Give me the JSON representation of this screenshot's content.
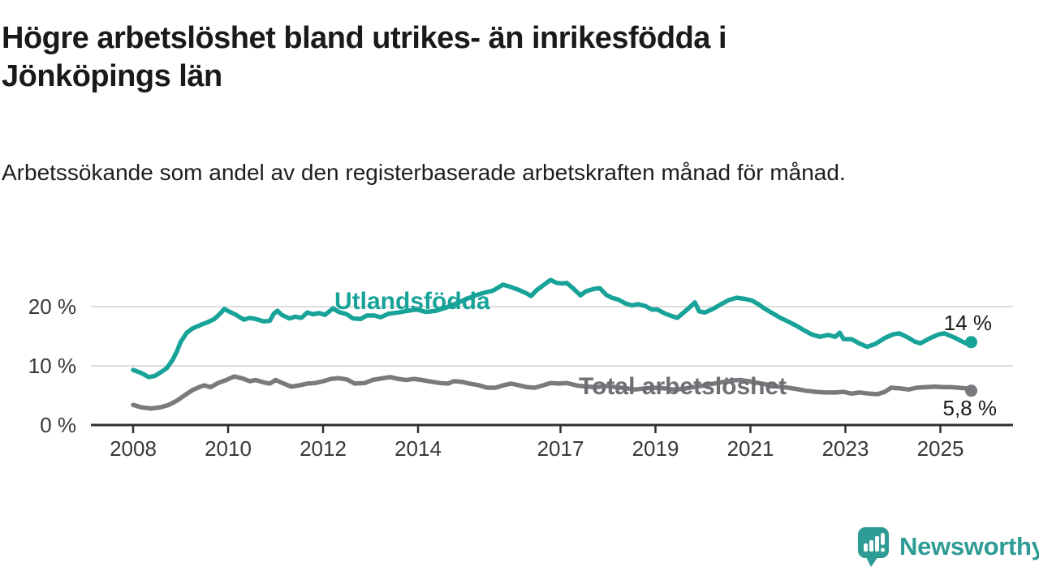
{
  "header": {
    "title": "Högre arbetslöshet bland utrikes- än inrikesfödda i Jönköpings län",
    "subtitle": "Arbetssökande som andel av den registerbaserade arbetskraften månad för månad."
  },
  "footer": {
    "brand": "Newsworthy"
  },
  "colors": {
    "teal": "#18A399",
    "gray": "#7A7A7E",
    "gray_label": "#6E6E73",
    "axis": "#2F2F2F",
    "tick_text": "#383838",
    "gridline": "#DCDCDC",
    "title_text": "#1A1A1A",
    "logo_teal": "#2D9C94"
  },
  "chart_data": {
    "type": "line",
    "title": "Högre arbetslöshet bland utrikes- än inrikesfödda i Jönköpings län",
    "subtitle": "Arbetssökande som andel av den registerbaserade arbetskraften månad för månad.",
    "unit": "%",
    "grid": "horizontal-only",
    "legend_position": "inline-labels-on-lines",
    "x_axis": {
      "ticks": [
        2008,
        2010,
        2012,
        2014,
        2017,
        2019,
        2021,
        2023,
        2025
      ],
      "range": [
        2007.1,
        2026.5
      ]
    },
    "y_axis": {
      "ticks": [
        0,
        10,
        20
      ],
      "tick_labels": [
        "0 %",
        "10 %",
        "20 %"
      ],
      "gridline_values": [
        10,
        20
      ],
      "range": [
        0,
        26.5
      ]
    },
    "series": [
      {
        "name": "Utlandsfödda",
        "color": "#18A399",
        "end_value": 14,
        "end_label": "14 %",
        "points": [
          [
            2008.0,
            9.3
          ],
          [
            2008.17,
            8.8
          ],
          [
            2008.33,
            8.1
          ],
          [
            2008.46,
            8.3
          ],
          [
            2008.58,
            8.9
          ],
          [
            2008.71,
            9.6
          ],
          [
            2008.83,
            11.0
          ],
          [
            2008.92,
            12.4
          ],
          [
            2009.0,
            14.0
          ],
          [
            2009.13,
            15.6
          ],
          [
            2009.25,
            16.3
          ],
          [
            2009.42,
            16.9
          ],
          [
            2009.58,
            17.4
          ],
          [
            2009.71,
            17.9
          ],
          [
            2009.83,
            18.8
          ],
          [
            2009.92,
            19.6
          ],
          [
            2010.04,
            19.1
          ],
          [
            2010.17,
            18.6
          ],
          [
            2010.33,
            17.8
          ],
          [
            2010.46,
            18.1
          ],
          [
            2010.58,
            17.9
          ],
          [
            2010.75,
            17.5
          ],
          [
            2010.88,
            17.6
          ],
          [
            2010.96,
            18.8
          ],
          [
            2011.04,
            19.3
          ],
          [
            2011.13,
            18.6
          ],
          [
            2011.29,
            18.0
          ],
          [
            2011.42,
            18.3
          ],
          [
            2011.54,
            18.1
          ],
          [
            2011.67,
            19.0
          ],
          [
            2011.79,
            18.7
          ],
          [
            2011.92,
            18.9
          ],
          [
            2012.04,
            18.6
          ],
          [
            2012.21,
            19.7
          ],
          [
            2012.33,
            19.1
          ],
          [
            2012.5,
            18.7
          ],
          [
            2012.63,
            18.0
          ],
          [
            2012.79,
            17.9
          ],
          [
            2012.92,
            18.5
          ],
          [
            2013.08,
            18.5
          ],
          [
            2013.21,
            18.2
          ],
          [
            2013.38,
            18.8
          ],
          [
            2013.58,
            19.0
          ],
          [
            2013.79,
            19.3
          ],
          [
            2013.96,
            19.5
          ],
          [
            2014.17,
            19.1
          ],
          [
            2014.38,
            19.3
          ],
          [
            2014.58,
            19.8
          ],
          [
            2014.79,
            20.5
          ],
          [
            2015.0,
            21.2
          ],
          [
            2015.21,
            21.9
          ],
          [
            2015.42,
            22.4
          ],
          [
            2015.58,
            22.7
          ],
          [
            2015.79,
            23.7
          ],
          [
            2015.96,
            23.3
          ],
          [
            2016.13,
            22.8
          ],
          [
            2016.29,
            22.2
          ],
          [
            2016.38,
            21.8
          ],
          [
            2016.5,
            22.8
          ],
          [
            2016.67,
            23.8
          ],
          [
            2016.79,
            24.5
          ],
          [
            2016.92,
            24.0
          ],
          [
            2017.04,
            23.9
          ],
          [
            2017.13,
            24.0
          ],
          [
            2017.25,
            23.2
          ],
          [
            2017.42,
            21.9
          ],
          [
            2017.54,
            22.6
          ],
          [
            2017.71,
            23.0
          ],
          [
            2017.83,
            23.1
          ],
          [
            2017.96,
            22.0
          ],
          [
            2018.08,
            21.5
          ],
          [
            2018.21,
            21.2
          ],
          [
            2018.38,
            20.5
          ],
          [
            2018.5,
            20.2
          ],
          [
            2018.63,
            20.4
          ],
          [
            2018.79,
            20.1
          ],
          [
            2018.92,
            19.5
          ],
          [
            2019.04,
            19.5
          ],
          [
            2019.21,
            18.8
          ],
          [
            2019.38,
            18.3
          ],
          [
            2019.46,
            18.1
          ],
          [
            2019.58,
            18.9
          ],
          [
            2019.71,
            19.8
          ],
          [
            2019.83,
            20.7
          ],
          [
            2019.92,
            19.2
          ],
          [
            2020.04,
            19.0
          ],
          [
            2020.21,
            19.6
          ],
          [
            2020.38,
            20.4
          ],
          [
            2020.54,
            21.1
          ],
          [
            2020.71,
            21.5
          ],
          [
            2020.88,
            21.3
          ],
          [
            2021.04,
            21.0
          ],
          [
            2021.17,
            20.4
          ],
          [
            2021.29,
            19.7
          ],
          [
            2021.46,
            18.9
          ],
          [
            2021.63,
            18.1
          ],
          [
            2021.79,
            17.5
          ],
          [
            2021.96,
            16.8
          ],
          [
            2022.13,
            16.0
          ],
          [
            2022.29,
            15.3
          ],
          [
            2022.46,
            14.9
          ],
          [
            2022.63,
            15.2
          ],
          [
            2022.79,
            14.9
          ],
          [
            2022.88,
            15.6
          ],
          [
            2022.96,
            14.5
          ],
          [
            2023.13,
            14.5
          ],
          [
            2023.29,
            13.8
          ],
          [
            2023.46,
            13.2
          ],
          [
            2023.63,
            13.7
          ],
          [
            2023.83,
            14.7
          ],
          [
            2024.0,
            15.3
          ],
          [
            2024.13,
            15.5
          ],
          [
            2024.29,
            14.9
          ],
          [
            2024.46,
            14.1
          ],
          [
            2024.58,
            13.8
          ],
          [
            2024.79,
            14.7
          ],
          [
            2024.96,
            15.3
          ],
          [
            2025.08,
            15.5
          ],
          [
            2025.29,
            14.8
          ],
          [
            2025.46,
            14.1
          ],
          [
            2025.54,
            13.8
          ],
          [
            2025.65,
            14.0
          ]
        ]
      },
      {
        "name": "Total arbetslöshet",
        "color": "#7A7A7E",
        "end_value": 5.8,
        "end_label": "5,8 %",
        "points": [
          [
            2008.0,
            3.4
          ],
          [
            2008.17,
            3.0
          ],
          [
            2008.38,
            2.8
          ],
          [
            2008.58,
            3.0
          ],
          [
            2008.75,
            3.4
          ],
          [
            2008.92,
            4.1
          ],
          [
            2009.08,
            5.0
          ],
          [
            2009.25,
            5.9
          ],
          [
            2009.42,
            6.5
          ],
          [
            2009.5,
            6.7
          ],
          [
            2009.63,
            6.4
          ],
          [
            2009.79,
            7.1
          ],
          [
            2009.96,
            7.6
          ],
          [
            2010.13,
            8.2
          ],
          [
            2010.29,
            7.9
          ],
          [
            2010.46,
            7.4
          ],
          [
            2010.58,
            7.6
          ],
          [
            2010.75,
            7.2
          ],
          [
            2010.88,
            7.0
          ],
          [
            2011.0,
            7.6
          ],
          [
            2011.17,
            7.0
          ],
          [
            2011.33,
            6.5
          ],
          [
            2011.5,
            6.7
          ],
          [
            2011.67,
            7.0
          ],
          [
            2011.83,
            7.1
          ],
          [
            2012.0,
            7.4
          ],
          [
            2012.17,
            7.8
          ],
          [
            2012.33,
            7.9
          ],
          [
            2012.5,
            7.7
          ],
          [
            2012.67,
            7.0
          ],
          [
            2012.88,
            7.1
          ],
          [
            2013.04,
            7.6
          ],
          [
            2013.25,
            7.9
          ],
          [
            2013.42,
            8.1
          ],
          [
            2013.58,
            7.8
          ],
          [
            2013.75,
            7.6
          ],
          [
            2013.92,
            7.8
          ],
          [
            2014.08,
            7.6
          ],
          [
            2014.29,
            7.3
          ],
          [
            2014.46,
            7.1
          ],
          [
            2014.63,
            7.0
          ],
          [
            2014.75,
            7.4
          ],
          [
            2014.92,
            7.3
          ],
          [
            2015.08,
            7.0
          ],
          [
            2015.29,
            6.7
          ],
          [
            2015.46,
            6.3
          ],
          [
            2015.63,
            6.3
          ],
          [
            2015.79,
            6.7
          ],
          [
            2015.96,
            7.0
          ],
          [
            2016.13,
            6.7
          ],
          [
            2016.29,
            6.4
          ],
          [
            2016.46,
            6.3
          ],
          [
            2016.63,
            6.7
          ],
          [
            2016.79,
            7.1
          ],
          [
            2016.96,
            7.0
          ],
          [
            2017.13,
            7.1
          ],
          [
            2017.33,
            6.7
          ],
          [
            2017.54,
            6.5
          ],
          [
            2017.75,
            6.4
          ],
          [
            2017.96,
            6.6
          ],
          [
            2018.17,
            6.4
          ],
          [
            2018.38,
            6.2
          ],
          [
            2018.58,
            6.0
          ],
          [
            2018.79,
            6.2
          ],
          [
            2018.96,
            6.3
          ],
          [
            2019.17,
            6.2
          ],
          [
            2019.38,
            6.0
          ],
          [
            2019.58,
            6.1
          ],
          [
            2019.79,
            6.4
          ],
          [
            2019.96,
            6.6
          ],
          [
            2020.17,
            6.9
          ],
          [
            2020.38,
            7.2
          ],
          [
            2020.58,
            7.5
          ],
          [
            2020.79,
            7.6
          ],
          [
            2020.96,
            7.4
          ],
          [
            2021.17,
            7.1
          ],
          [
            2021.38,
            6.8
          ],
          [
            2021.58,
            6.5
          ],
          [
            2021.79,
            6.3
          ],
          [
            2021.96,
            6.1
          ],
          [
            2022.17,
            5.8
          ],
          [
            2022.38,
            5.6
          ],
          [
            2022.58,
            5.5
          ],
          [
            2022.79,
            5.5
          ],
          [
            2022.96,
            5.6
          ],
          [
            2023.13,
            5.3
          ],
          [
            2023.29,
            5.5
          ],
          [
            2023.5,
            5.3
          ],
          [
            2023.67,
            5.2
          ],
          [
            2023.83,
            5.6
          ],
          [
            2023.96,
            6.3
          ],
          [
            2024.13,
            6.2
          ],
          [
            2024.33,
            6.0
          ],
          [
            2024.5,
            6.3
          ],
          [
            2024.71,
            6.4
          ],
          [
            2024.88,
            6.5
          ],
          [
            2025.04,
            6.4
          ],
          [
            2025.21,
            6.4
          ],
          [
            2025.38,
            6.3
          ],
          [
            2025.54,
            6.2
          ],
          [
            2025.65,
            5.8
          ]
        ]
      }
    ]
  }
}
